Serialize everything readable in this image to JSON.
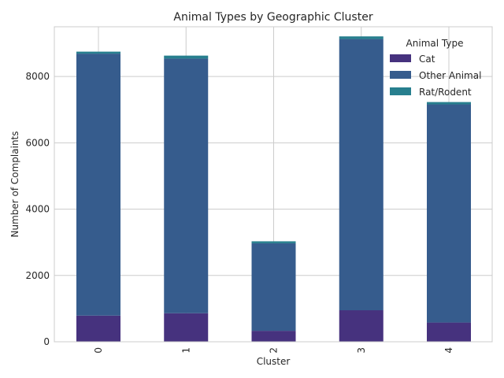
{
  "chart_data": {
    "type": "bar",
    "stacked": true,
    "title": "Animal Types by Geographic Cluster",
    "xlabel": "Cluster",
    "ylabel": "Number of Complaints",
    "categories": [
      "0",
      "1",
      "2",
      "3",
      "4"
    ],
    "ylim": [
      0,
      9500
    ],
    "yticks": [
      0,
      2000,
      4000,
      6000,
      8000
    ],
    "grid": true,
    "legend": {
      "title": "Animal Type",
      "placement": "top-right"
    },
    "series": [
      {
        "name": "Cat",
        "color": "#46327e",
        "values": [
          790,
          860,
          330,
          950,
          580
        ]
      },
      {
        "name": "Other Animal",
        "color": "#365c8d",
        "values": [
          7900,
          7680,
          2640,
          8180,
          6580
        ]
      },
      {
        "name": "Rat/Rodent",
        "color": "#277f8e",
        "values": [
          60,
          90,
          60,
          80,
          70
        ]
      }
    ]
  }
}
